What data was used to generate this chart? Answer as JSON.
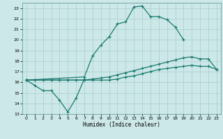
{
  "xlabel": "Humidex (Indice chaleur)",
  "background_color": "#cce8e8",
  "grid_color": "#aacccc",
  "line_color": "#1a7a6e",
  "line1_x": [
    0,
    1,
    2,
    3,
    4,
    5,
    6,
    7
  ],
  "line1_y": [
    16.2,
    15.7,
    15.2,
    15.2,
    14.3,
    13.2,
    14.5,
    16.3
  ],
  "line2_x": [
    0,
    7,
    8,
    9,
    10,
    11,
    12,
    13,
    14,
    15,
    16,
    17,
    18,
    19
  ],
  "line2_y": [
    16.2,
    16.5,
    18.5,
    19.5,
    20.3,
    21.5,
    21.7,
    23.1,
    23.2,
    22.2,
    22.2,
    21.9,
    21.2,
    20.0
  ],
  "line3_x": [
    0,
    1,
    2,
    3,
    4,
    5,
    6,
    7,
    8,
    9,
    10,
    11,
    12,
    13,
    14,
    15,
    16,
    17,
    18,
    19,
    20,
    21,
    22,
    23
  ],
  "line3_y": [
    16.2,
    16.2,
    16.2,
    16.2,
    16.2,
    16.2,
    16.2,
    16.2,
    16.3,
    16.4,
    16.5,
    16.7,
    16.9,
    17.1,
    17.3,
    17.5,
    17.7,
    17.9,
    18.1,
    18.3,
    18.4,
    18.2,
    18.2,
    17.2
  ],
  "line4_x": [
    0,
    1,
    2,
    3,
    4,
    5,
    6,
    7,
    8,
    9,
    10,
    11,
    12,
    13,
    14,
    15,
    16,
    17,
    18,
    19,
    20,
    21,
    22,
    23
  ],
  "line4_y": [
    16.2,
    16.2,
    16.2,
    16.2,
    16.2,
    16.2,
    16.2,
    16.2,
    16.2,
    16.2,
    16.2,
    16.3,
    16.5,
    16.6,
    16.8,
    17.0,
    17.2,
    17.3,
    17.4,
    17.5,
    17.6,
    17.5,
    17.5,
    17.2
  ],
  "xlim": [
    -0.5,
    23.5
  ],
  "ylim": [
    13,
    23.5
  ],
  "yticks": [
    13,
    14,
    15,
    16,
    17,
    18,
    19,
    20,
    21,
    22,
    23
  ],
  "xticks": [
    0,
    1,
    2,
    3,
    4,
    5,
    6,
    7,
    8,
    9,
    10,
    11,
    12,
    13,
    14,
    15,
    16,
    17,
    18,
    19,
    20,
    21,
    22,
    23
  ]
}
